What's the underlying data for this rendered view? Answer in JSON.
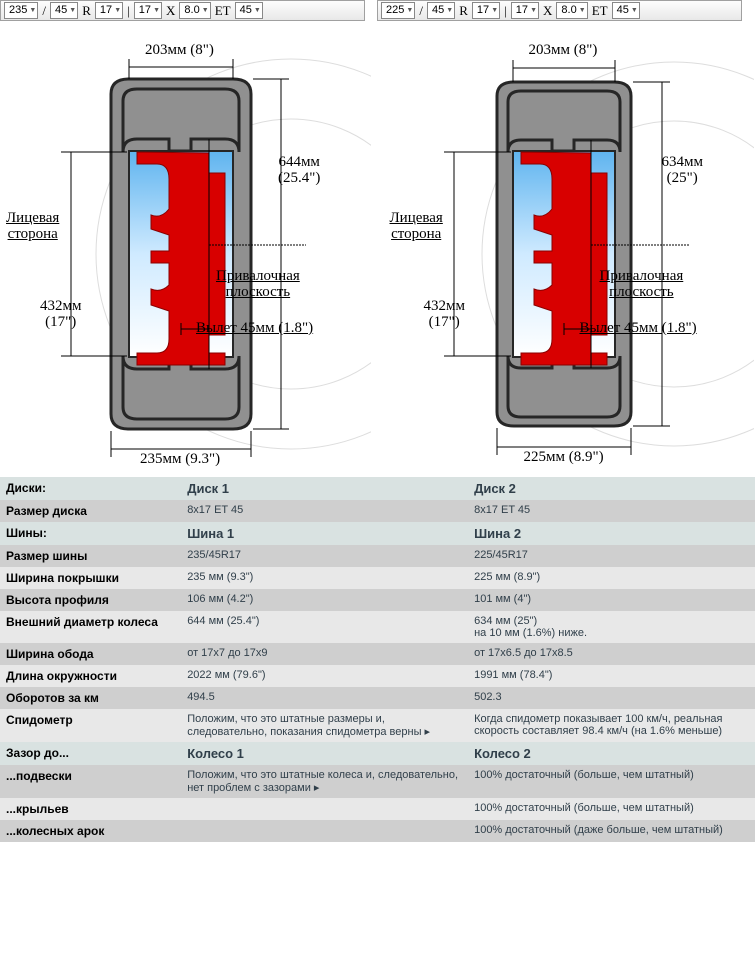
{
  "toolbars": {
    "left": {
      "width": "235",
      "ratio": "45",
      "r": "R",
      "diam": "17",
      "rim": "17",
      "x": "X",
      "rimw": "8.0",
      "et": "ET",
      "off": "45"
    },
    "right": {
      "width": "225",
      "ratio": "45",
      "r": "R",
      "diam": "17",
      "rim": "17",
      "x": "X",
      "rimw": "8.0",
      "et": "ET",
      "off": "45"
    }
  },
  "diagram_style": {
    "tire_fill": "#909090",
    "tire_stroke": "#262626",
    "tire_stroke_w": 3,
    "rim_fill": "#d80000",
    "glass_grad_top": "#5fb4ef",
    "glass_grad_bot": "#ffffff",
    "dim_line": "#000",
    "font": "Times New Roman"
  },
  "diagrams": {
    "left": {
      "top_width": "203мм (8\")",
      "bottom_width": "235мм (9.3\")",
      "face_side": "Лицевая\nсторона",
      "height_label": "644мм\n(25.4\")",
      "rim_height": "432мм\n(17\")",
      "mounting_plane": "Привалочная\nплоскость",
      "offset": "Вылет 45мм (1.8\")"
    },
    "right": {
      "top_width": "203мм (8\")",
      "bottom_width": "225мм (8.9\")",
      "face_side": "Лицевая\nсторона",
      "height_label": "634мм\n(25\")",
      "rim_height": "432мм\n(17\")",
      "mounting_plane": "Привалочная\nплоскость",
      "offset": "Вылет 45мм (1.8\")"
    }
  },
  "table": {
    "rows": [
      {
        "type": "hdr",
        "label": "Диски:",
        "v1": "Диск 1",
        "v2": "Диск 2"
      },
      {
        "type": "a",
        "label": "Размер диска",
        "v1": "8x17 ET 45",
        "v2": "8x17 ET 45"
      },
      {
        "type": "hdr",
        "label": "Шины:",
        "v1": "Шина 1",
        "v2": "Шина 2"
      },
      {
        "type": "a",
        "label": "Размер шины",
        "v1": "235/45R17",
        "v2": "225/45R17"
      },
      {
        "type": "b",
        "label": "Ширина покрышки",
        "v1": "235 мм (9.3\")",
        "v2": "225 мм (8.9\")"
      },
      {
        "type": "a",
        "label": "Высота профиля",
        "v1": "106 мм (4.2\")",
        "v2": "101 мм (4\")"
      },
      {
        "type": "b",
        "label": "Внешний диаметр колеса",
        "v1": "644 мм (25.4\")",
        "v2": "634 мм (25\")\nна 10 мм (1.6%) ниже."
      },
      {
        "type": "a",
        "label": "Ширина обода",
        "v1": "от 17x7 до 17x9",
        "v2": "от 17x6.5 до 17x8.5"
      },
      {
        "type": "b",
        "label": "Длина окружности",
        "v1": "2022 мм (79.6\")",
        "v2": "1991 мм (78.4\")"
      },
      {
        "type": "a",
        "label": "Оборотов за км",
        "v1": "494.5",
        "v2": "502.3"
      },
      {
        "type": "b",
        "label": "Спидометр",
        "v1": "Положим, что это штатные размеры и, следовательно, показания спидометра верны ▸",
        "v2": "Когда спидометр показывает 100 км/ч, реальная скорость составляет 98.4 км/ч (на 1.6% меньше)"
      },
      {
        "type": "hdr",
        "label": "Зазор до...",
        "v1": "Колесо 1",
        "v2": "Колесо 2"
      },
      {
        "type": "a",
        "label": "...подвески",
        "v1": "Положим, что это штатные колеса и, следовательно, нет проблем с зазорами ▸",
        "v2": "100% достаточный (больше, чем штатный)"
      },
      {
        "type": "b",
        "label": "...крыльев",
        "v1": "",
        "v2": "100% достаточный (больше, чем штатный)"
      },
      {
        "type": "a",
        "label": "...колесных арок",
        "v1": "",
        "v2": "100% достаточный (даже больше, чем штатный)"
      }
    ]
  }
}
